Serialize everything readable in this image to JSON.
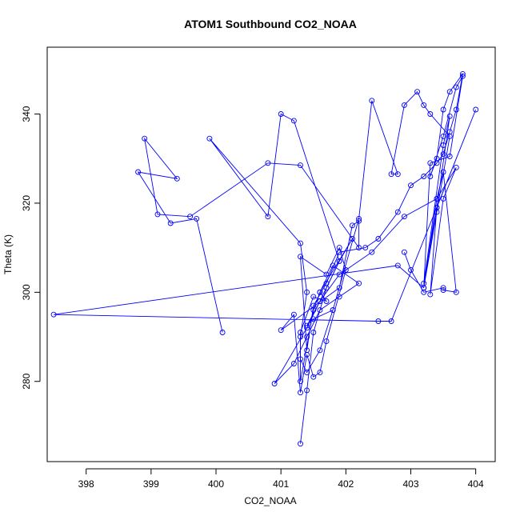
{
  "chart_data": {
    "type": "line",
    "title": "ATOM1 Southbound CO2_NOAA",
    "xlabel": "CO2_NOAA",
    "ylabel": "Theta (K)",
    "xlim": [
      397.4,
      404.3
    ],
    "ylim": [
      262,
      355
    ],
    "xticks": [
      398,
      399,
      400,
      401,
      402,
      403,
      404
    ],
    "yticks": [
      280,
      300,
      320,
      340
    ],
    "line_color": "#0000ff",
    "marker": "open-circle",
    "series": [
      {
        "x": [
          400.1,
          399.7,
          399.3,
          398.8,
          399.4,
          398.9,
          399.1,
          399.6,
          400.8,
          401.3,
          402.2,
          402.2,
          402.1,
          401.9,
          401.0,
          401.2,
          401.3,
          401.4,
          401.5,
          401.6,
          401.7,
          402.0,
          401.9,
          401.7,
          401.3,
          401.4,
          401.5,
          401.7,
          401.9,
          402.3,
          402.5,
          402.8,
          403.0,
          403.2,
          403.4,
          403.5,
          403.6,
          403.7,
          403.8,
          403.6,
          403.5,
          403.4,
          403.3,
          403.5,
          403.7,
          403.8,
          403.6,
          403.3,
          403.2,
          403.4,
          403.6,
          403.3,
          403.2,
          403.1,
          402.9,
          402.7,
          402.8,
          402.4,
          402.2,
          401.8,
          401.5,
          401.4,
          401.6,
          401.9,
          401.2,
          401.0,
          400.8,
          399.9,
          401.3,
          401.4,
          401.3,
          401.3,
          401.5,
          401.6,
          401.8,
          402.2,
          401.9,
          401.6,
          401.4,
          401.2,
          400.9,
          401.4,
          401.6,
          401.9,
          402.4,
          402.9,
          403.4,
          403.7,
          403.5,
          403.3,
          403.4,
          403.6,
          403.5,
          403.2,
          403.4,
          404.0,
          402.7,
          402.5,
          397.5,
          402.8,
          403.2,
          403.4,
          403.5,
          403.7,
          403.5,
          403.5,
          403.2,
          403.0,
          402.9
        ],
        "y": [
          291,
          316.5,
          315.5,
          327,
          325.5,
          334.5,
          317.5,
          317,
          329,
          328.5,
          310,
          316,
          315,
          301,
          291.5,
          295,
          277.5,
          286,
          281,
          282,
          289,
          305,
          310,
          304,
          308,
          287,
          297,
          302,
          309,
          310,
          312,
          318,
          324,
          326,
          329,
          331,
          336,
          341,
          349,
          345,
          341,
          330,
          326,
          335,
          346,
          348.5,
          330.5,
          329,
          301,
          318,
          335,
          340,
          342,
          345,
          342,
          326.5,
          326.5,
          343,
          316.5,
          296,
          294,
          292.5,
          298,
          307,
          338.5,
          340,
          317,
          334.5,
          311,
          300,
          290,
          280,
          296,
          300,
          306,
          302,
          299,
          296,
          290,
          284,
          279.5,
          292,
          298,
          304,
          309,
          317,
          321,
          328,
          321,
          299.5,
          319,
          339.5,
          333,
          302,
          319,
          341,
          293.5,
          293.5,
          295,
          306,
          301,
          321,
          327,
          300,
          300.5,
          301,
          300,
          305,
          309
        ]
      },
      {
        "x": [
          401.3,
          401.4,
          401.5,
          401.7,
          401.9,
          402.1,
          401.6,
          401.7,
          401.5,
          401.3,
          401.3,
          401.4,
          401.6,
          401.8
        ],
        "y": [
          266,
          278,
          291,
          301,
          307,
          312,
          300,
          298,
          299,
          291,
          285,
          282,
          287,
          296
        ]
      }
    ]
  }
}
